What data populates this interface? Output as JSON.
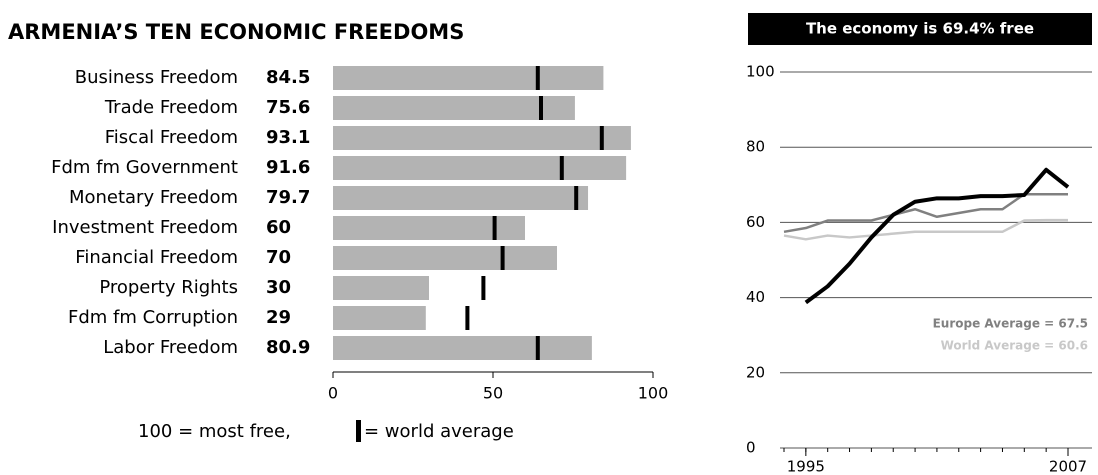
{
  "chart_data": [
    {
      "type": "bar",
      "orientation": "horizontal",
      "title": "ARMENIA’S TEN ECONOMIC FREEDOMS",
      "categories": [
        "Business Freedom",
        "Trade Freedom",
        "Fiscal Freedom",
        "Fdm fm Government",
        "Monetary Freedom",
        "Investment Freedom",
        "Financial Freedom",
        "Property Rights",
        "Fdm fm Corruption",
        "Labor Freedom"
      ],
      "values": [
        84.5,
        75.6,
        93.1,
        91.6,
        79.7,
        60,
        70,
        30,
        29,
        80.9
      ],
      "color": "#b3b3b3",
      "world_average": [
        64,
        65,
        84,
        71.5,
        76,
        50.5,
        53,
        47,
        42,
        64
      ],
      "marker_color": "#000000",
      "xlim": [
        0,
        100
      ],
      "xticks": [
        0,
        50,
        100
      ],
      "note": "100 = most free,",
      "marker_label": "= world average"
    },
    {
      "type": "line",
      "title": "The economy is 69.4% free",
      "x": [
        1994,
        1995,
        1996,
        1997,
        1998,
        1999,
        2000,
        2001,
        2002,
        2003,
        2004,
        2005,
        2006,
        2007
      ],
      "xlim": [
        1994,
        2007
      ],
      "xticks": [
        1995,
        2007
      ],
      "ylim": [
        0,
        100
      ],
      "yticks": [
        0,
        20,
        40,
        60,
        80,
        100
      ],
      "grid": true,
      "series": [
        {
          "color": "#000000",
          "values": [
            null,
            38.7,
            43,
            49,
            56,
            62,
            65.5,
            66.4,
            66.4,
            67,
            67,
            67.3,
            74,
            69.4
          ]
        },
        {
          "name": "Europe Average = 67.5",
          "color": "#808080",
          "values": [
            57.5,
            58.5,
            60.5,
            60.5,
            60.5,
            62,
            63.5,
            61.5,
            62.5,
            63.5,
            63.5,
            67.5,
            67.5,
            67.5
          ]
        },
        {
          "name": "World Average = 60.6",
          "color": "#c8c8c8",
          "values": [
            56.5,
            55.5,
            56.5,
            56,
            56.5,
            57,
            57.5,
            57.5,
            57.5,
            57.5,
            57.5,
            60.5,
            60.6,
            60.6
          ]
        }
      ]
    }
  ]
}
